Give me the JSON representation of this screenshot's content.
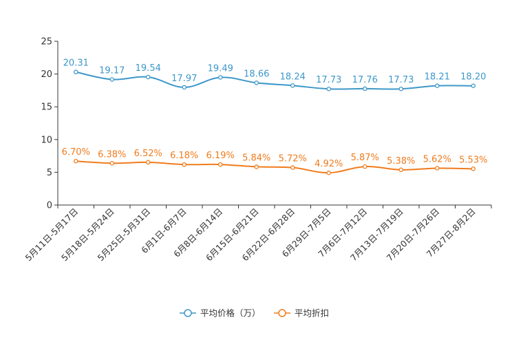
{
  "chart_data": {
    "type": "line",
    "title": "",
    "xlabel": "",
    "ylabel": "",
    "ylim": [
      0,
      25
    ],
    "yticks": [
      0,
      5,
      10,
      15,
      20,
      25
    ],
    "grid": false,
    "legend_position": "bottom-center",
    "categories": [
      "5月11日-5月17日",
      "5月18日-5月24日",
      "5月25日-5月31日",
      "6月1日-6月7日",
      "6月8日-6月14日",
      "6月15日-6月21日",
      "6月22日-6月28日",
      "6月29日-7月5日",
      "7月6日-7月12日",
      "7月13日-7月19日",
      "7月20日-7月26日",
      "7月27日-8月2日"
    ],
    "series": [
      {
        "name": "平均价格（万）",
        "color": "#3d97c9",
        "values": [
          20.31,
          19.17,
          19.54,
          17.97,
          19.49,
          18.66,
          18.24,
          17.73,
          17.76,
          17.73,
          18.21,
          18.2
        ],
        "labels": [
          "20.31",
          "19.17",
          "19.54",
          "17.97",
          "19.49",
          "18.66",
          "18.24",
          "17.73",
          "17.76",
          "17.73",
          "18.21",
          "18.20"
        ]
      },
      {
        "name": "平均折扣",
        "color": "#f07b1c",
        "values": [
          6.7,
          6.38,
          6.52,
          6.18,
          6.19,
          5.84,
          5.72,
          4.92,
          5.87,
          5.38,
          5.62,
          5.53
        ],
        "labels": [
          "6.70%",
          "6.38%",
          "6.52%",
          "6.18%",
          "6.19%",
          "5.84%",
          "5.72%",
          "4.92%",
          "5.87%",
          "5.38%",
          "5.62%",
          "5.53%"
        ]
      }
    ]
  }
}
